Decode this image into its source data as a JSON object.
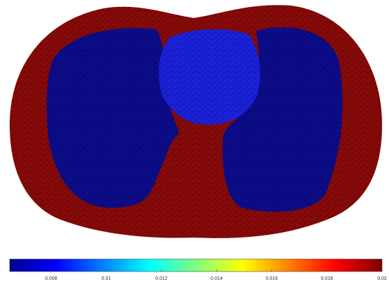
{
  "colorbar": {
    "lim": [
      0.0065,
      0.02
    ],
    "ticks": [
      0.008,
      0.01,
      0.012,
      0.014,
      0.016,
      0.018,
      0.02
    ]
  }
}
